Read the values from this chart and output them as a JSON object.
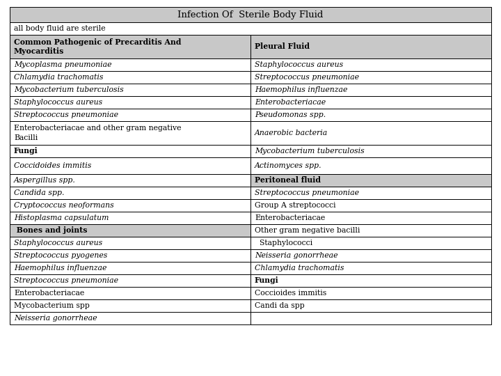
{
  "title": "Infection Of  Sterile Body Fluid",
  "subtitle": "all body fluid are sterile",
  "gray_bg": "#c8c8c8",
  "white_bg": "#ffffff",
  "rows": [
    {
      "left": "Common Pathogenic of Precarditis And\nMyocarditis",
      "right": "Pleural Fluid",
      "left_bold": true,
      "left_italic": false,
      "right_bold": true,
      "right_italic": false,
      "bg": "#c8c8c8",
      "multiline_left": true
    },
    {
      "left": "Mycoplasma pneumoniae",
      "right": "Staphylococcus aureus",
      "left_bold": false,
      "left_italic": true,
      "right_bold": false,
      "right_italic": true,
      "bg": "#ffffff"
    },
    {
      "left": "Chlamydia trachomatis",
      "right": "Streptococcus pneumoniae",
      "left_bold": false,
      "left_italic": true,
      "right_bold": false,
      "right_italic": true,
      "bg": "#ffffff"
    },
    {
      "left": "Mycobacterium tuberculosis",
      "right": "Haemophilus influenzae",
      "left_bold": false,
      "left_italic": true,
      "right_bold": false,
      "right_italic": true,
      "bg": "#ffffff"
    },
    {
      "left": "Staphylococcus aureus",
      "right": "Enterobacteriacae",
      "left_bold": false,
      "left_italic": true,
      "right_bold": false,
      "right_italic": true,
      "bg": "#ffffff"
    },
    {
      "left": "Streptococcus pneumoniae",
      "right": "Pseudomonas spp.",
      "left_bold": false,
      "left_italic": true,
      "right_bold": false,
      "right_italic": true,
      "bg": "#ffffff"
    },
    {
      "left": "Enterobacteriacae and other gram negative\nBacilli",
      "right": "Anaerobic bacteria",
      "left_bold": false,
      "left_italic": false,
      "right_bold": false,
      "right_italic": true,
      "bg": "#ffffff",
      "multiline_left": true
    },
    {
      "left": "Fungi",
      "right": "Mycobacterium tuberculosis",
      "left_bold": true,
      "left_italic": false,
      "right_bold": false,
      "right_italic": true,
      "bg": "#ffffff"
    },
    {
      "left": "Coccidoides immitis",
      "right": "Actinomyces spp.",
      "left_bold": false,
      "left_italic": true,
      "right_bold": false,
      "right_italic": true,
      "bg": "#ffffff",
      "extra_gap": true
    },
    {
      "left": "Aspergillus spp.",
      "right": "Peritoneal fluid",
      "left_bold": false,
      "left_italic": true,
      "right_bold": true,
      "right_italic": false,
      "bg": "#ffffff",
      "bg_right": "#c8c8c8"
    },
    {
      "left": "Candida spp.",
      "right": "Streptococcus pneumoniae",
      "left_bold": false,
      "left_italic": true,
      "right_bold": false,
      "right_italic": true,
      "bg": "#ffffff"
    },
    {
      "left": "Cryptococcus neoformans",
      "right": "Group A streptococci",
      "left_bold": false,
      "left_italic": true,
      "right_bold": false,
      "right_italic": false,
      "bg": "#ffffff"
    },
    {
      "left": "Histoplasma capsulatum",
      "right": "Enterobacteriacae",
      "left_bold": false,
      "left_italic": true,
      "right_bold": false,
      "right_italic": false,
      "bg": "#ffffff"
    },
    {
      "left": " Bones and joints",
      "right": "Other gram negative bacilli",
      "left_bold": true,
      "left_italic": false,
      "right_bold": false,
      "right_italic": false,
      "bg": "#ffffff",
      "bg_left": "#c8c8c8"
    },
    {
      "left": "Staphylococcus aureus",
      "right": "  Staphylococci",
      "left_bold": false,
      "left_italic": true,
      "right_bold": false,
      "right_italic": false,
      "bg": "#ffffff"
    },
    {
      "left": "Streptococcus pyogenes",
      "right": "Neisseria gonorrheae",
      "left_bold": false,
      "left_italic": true,
      "right_bold": false,
      "right_italic": true,
      "bg": "#ffffff"
    },
    {
      "left": "Haemophilus influenzae",
      "right": "Chlamydia trachomatis",
      "left_bold": false,
      "left_italic": true,
      "right_bold": false,
      "right_italic": true,
      "bg": "#ffffff"
    },
    {
      "left": "Streptococcus pneumoniae",
      "right": "Fungi",
      "left_bold": false,
      "left_italic": true,
      "right_bold": true,
      "right_italic": false,
      "bg": "#ffffff"
    },
    {
      "left": "Enterobacteriacae",
      "right": "Coccioides immitis",
      "left_bold": false,
      "left_italic": false,
      "right_bold": false,
      "right_italic": false,
      "bg": "#ffffff"
    },
    {
      "left": "Mycobacterium spp",
      "right": "Candi da spp",
      "left_bold": false,
      "left_italic": false,
      "right_bold": false,
      "right_italic": false,
      "bg": "#ffffff"
    },
    {
      "left": "Neisseria gonorrheae",
      "right": "",
      "left_bold": false,
      "left_italic": true,
      "right_bold": false,
      "right_italic": false,
      "bg": "#ffffff"
    }
  ],
  "font_size": 7.8,
  "title_font_size": 9.5
}
